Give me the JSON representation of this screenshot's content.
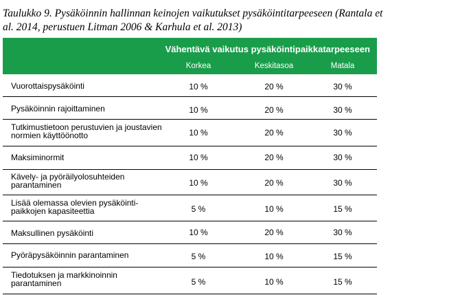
{
  "caption": {
    "line1": "Taulukko 9. Pysäköinnin hallinnan keinojen vaikutukset pysäköintitarpeeseen (Rantala et",
    "line2": "al. 2014, perustuen Litman 2006 & Karhula et al. 2013)"
  },
  "table": {
    "header_title": "Vähentävä vaikutus pysäköintipaikkatarpeeseen",
    "columns": [
      "Korkea",
      "Keskitasoa",
      "Matala"
    ],
    "rows": [
      {
        "label": "Vuorottaispysäköinti",
        "korkea": "10 %",
        "keskitaso": "20 %",
        "matala": "30 %"
      },
      {
        "label": "Pysäköinnin rajoittaminen",
        "korkea": "10 %",
        "keskitaso": "20 %",
        "matala": "30 %"
      },
      {
        "label": "Tutkimustietoon perustuvien ja joustavien normien käyttöönotto",
        "korkea": "10 %",
        "keskitaso": "20 %",
        "matala": "30 %"
      },
      {
        "label": "Maksiminormit",
        "korkea": "10 %",
        "keskitaso": "20 %",
        "matala": "30 %"
      },
      {
        "label": "Kävely- ja pyöräilyolosuhteiden parantaminen",
        "korkea": "10 %",
        "keskitaso": "20 %",
        "matala": "30 %"
      },
      {
        "label": "Lisää olemassa olevien pysäköinti-paikkojen kapasiteettia",
        "korkea": "5 %",
        "keskitaso": "10 %",
        "matala": "15 %"
      },
      {
        "label": "Maksullinen pysäköinti",
        "korkea": "10 %",
        "keskitaso": "20 %",
        "matala": "30 %"
      },
      {
        "label": "Pyöräpysäköinnin parantaminen",
        "korkea": "5 %",
        "keskitaso": "10 %",
        "matala": "15 %"
      },
      {
        "label": "Tiedotuksen ja markkinoinnin parantaminen",
        "korkea": "5 %",
        "keskitaso": "10 %",
        "matala": "15 %"
      }
    ]
  }
}
